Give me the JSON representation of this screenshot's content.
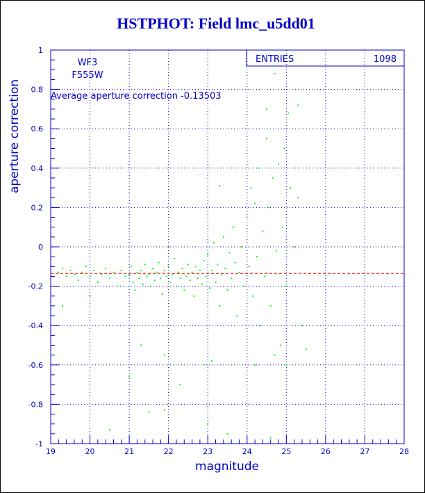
{
  "chart_data": {
    "type": "scatter",
    "title": "HSTPHOT: Field lmc_u5dd01",
    "x_label": "magnitude",
    "y_label": "aperture correction",
    "annotations": [
      "WF3",
      "F555W",
      "Average aperture correction -0.13503"
    ],
    "stats": {
      "label": "ENTRIES",
      "value": 1098
    },
    "hline": -0.13503,
    "hline_color": "#ff0000",
    "color": "#00ff00",
    "grid": true,
    "xlim": [
      19,
      28
    ],
    "xticks": [
      19,
      20,
      21,
      22,
      23,
      24,
      25,
      26,
      27,
      28
    ],
    "ylim": [
      -1,
      1
    ],
    "yticks": [
      -1,
      -0.8,
      -0.6,
      -0.4,
      -0.2,
      0,
      0.2,
      0.4,
      0.6,
      0.8,
      1
    ],
    "x": [
      19.2,
      19.3,
      19.4,
      19.5,
      19.6,
      19.7,
      19.8,
      19.9,
      20.0,
      20.1,
      20.2,
      20.3,
      20.4,
      20.5,
      20.6,
      20.7,
      20.8,
      20.9,
      21.0,
      21.05,
      21.1,
      21.15,
      21.2,
      21.25,
      21.3,
      21.35,
      21.4,
      21.45,
      21.5,
      21.55,
      21.6,
      21.65,
      21.7,
      21.75,
      21.8,
      21.85,
      21.9,
      21.95,
      22.0,
      22.05,
      22.1,
      22.15,
      22.2,
      22.25,
      22.3,
      22.35,
      22.4,
      22.45,
      22.5,
      22.55,
      22.6,
      22.65,
      22.7,
      22.75,
      22.8,
      22.85,
      22.9,
      22.95,
      23.0,
      23.05,
      23.1,
      23.15,
      23.2,
      23.25,
      23.3,
      23.35,
      23.4,
      23.45,
      23.5,
      23.55,
      23.6,
      23.65,
      23.7,
      23.75,
      23.8,
      23.85,
      23.9,
      24.0,
      24.05,
      24.1,
      24.15,
      24.2,
      24.25,
      24.3,
      24.35,
      24.4,
      24.45,
      24.5,
      24.55,
      24.6,
      24.65,
      24.7,
      24.75,
      24.8,
      24.85,
      24.9,
      24.95,
      25.0,
      25.05,
      25.1,
      25.2,
      25.3,
      25.4,
      25.5,
      25.3,
      21.0,
      21.3,
      21.5,
      21.9,
      22.3,
      22.9,
      23.0,
      23.1,
      23.5,
      20.5,
      19.3,
      20.0,
      23.3,
      24.2,
      24.7,
      24.6,
      22.0,
      21.9,
      24.5,
      25.0
    ],
    "values": [
      -0.13,
      -0.11,
      -0.15,
      -0.12,
      -0.14,
      -0.17,
      -0.13,
      -0.1,
      -0.15,
      -0.12,
      -0.18,
      -0.14,
      -0.11,
      -0.16,
      -0.13,
      -0.2,
      -0.12,
      -0.15,
      -0.14,
      -0.1,
      -0.18,
      -0.22,
      -0.13,
      -0.16,
      -0.12,
      -0.19,
      -0.09,
      -0.15,
      -0.14,
      -0.2,
      -0.11,
      -0.17,
      -0.13,
      -0.08,
      -0.16,
      -0.24,
      -0.12,
      -0.15,
      -0.1,
      -0.18,
      -0.14,
      -0.06,
      -0.2,
      -0.13,
      -0.16,
      -0.11,
      -0.22,
      -0.15,
      -0.09,
      -0.17,
      -0.13,
      -0.25,
      -0.1,
      -0.16,
      -0.12,
      -0.19,
      -0.07,
      -0.15,
      -0.04,
      -0.21,
      -0.12,
      0.02,
      -0.18,
      -0.09,
      -0.3,
      -0.14,
      0.05,
      -0.11,
      -0.22,
      -0.03,
      -0.16,
      0.1,
      -0.08,
      -0.35,
      -0.13,
      0.0,
      -0.2,
      0.15,
      -0.1,
      0.3,
      -0.25,
      0.22,
      -0.05,
      0.4,
      -0.4,
      0.08,
      -0.15,
      0.55,
      0.2,
      -0.3,
      0.35,
      0.88,
      -0.02,
      0.42,
      -0.5,
      0.1,
      0.5,
      -0.2,
      0.68,
      0.3,
      0.0,
      0.25,
      -0.4,
      -0.52,
      0.72,
      -0.66,
      -0.5,
      -0.84,
      -0.55,
      -0.7,
      -0.6,
      -0.9,
      -0.58,
      -0.95,
      -0.93,
      -0.3,
      -0.25,
      0.31,
      -0.6,
      -0.55,
      -0.97,
      0.0,
      -0.83,
      0.7,
      -0.6
    ]
  }
}
